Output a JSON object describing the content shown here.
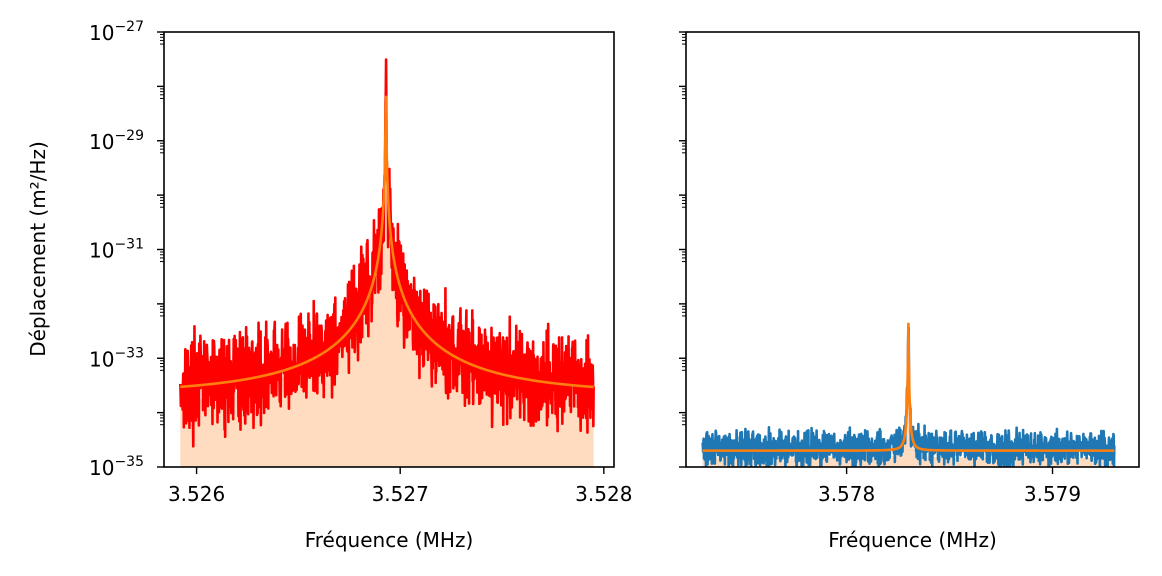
{
  "chart_data": [
    {
      "type": "line",
      "title": "",
      "xlabel": "Fréquence (MHz)",
      "ylabel": "Déplacement (m²/Hz)",
      "y_scale": "log",
      "xlim": [
        3.52584,
        3.52805
      ],
      "ylim": [
        1e-35,
        1e-27
      ],
      "x_ticks": [
        3.526,
        3.527,
        3.528
      ],
      "x_tick_labels": [
        "3.526",
        "3.527",
        "3.528"
      ],
      "y_ticks": [
        1e-35,
        1e-33,
        1e-31,
        1e-29,
        1e-27
      ],
      "y_tick_labels": [
        {
          "base": "10",
          "exp": "−35"
        },
        {
          "base": "10",
          "exp": "−33"
        },
        {
          "base": "10",
          "exp": "−31"
        },
        {
          "base": "10",
          "exp": "−29"
        },
        {
          "base": "10",
          "exp": "−27"
        }
      ],
      "grid": false,
      "series": [
        {
          "role": "measured",
          "color": "#ff0000",
          "style": "noisy-line",
          "x_range": [
            3.52592,
            3.52795
          ],
          "peak_x": 3.52693,
          "peak_y": 1e-28,
          "background_y": 2e-34
        },
        {
          "role": "fit",
          "color": "#ff7f0e",
          "style": "line",
          "x_range": [
            3.52592,
            3.52795
          ],
          "peak_x": 3.52693,
          "peak_y": 8e-29,
          "background_y": 2e-34
        },
        {
          "role": "fill",
          "color": "#ffdcc0",
          "style": "area",
          "x_range": [
            3.52592,
            3.52795
          ],
          "peak_x": 3.52693,
          "peak_y": 8e-29,
          "background_y": 6e-35
        }
      ]
    },
    {
      "type": "line",
      "title": "",
      "xlabel": "Fréquence (MHz)",
      "ylabel": "",
      "y_scale": "log",
      "xlim": [
        3.57722,
        3.57942
      ],
      "ylim": [
        1e-35,
        1e-27
      ],
      "x_ticks": [
        3.578,
        3.579
      ],
      "x_tick_labels": [
        "3.578",
        "3.579"
      ],
      "y_ticks": [
        1e-35,
        1e-33,
        1e-31,
        1e-29,
        1e-27
      ],
      "shared_y": true,
      "grid": false,
      "series": [
        {
          "role": "measured",
          "color": "#1f77b4",
          "style": "noisy-line",
          "x_range": [
            3.5773,
            3.5793
          ],
          "peak_x": 3.5783,
          "peak_y": 5e-33,
          "background_y": 2.2e-35
        },
        {
          "role": "fit",
          "color": "#ff7f0e",
          "style": "line",
          "x_range": [
            3.5773,
            3.5793
          ],
          "peak_x": 3.5783,
          "peak_y": 4.5e-33,
          "background_y": 2e-35
        },
        {
          "role": "fill",
          "color": "#ffdcc0",
          "style": "area",
          "x_range": [
            3.5773,
            3.5793
          ],
          "peak_x": 3.5783,
          "peak_y": 4e-33,
          "background_y": 1.5e-35
        }
      ]
    }
  ]
}
